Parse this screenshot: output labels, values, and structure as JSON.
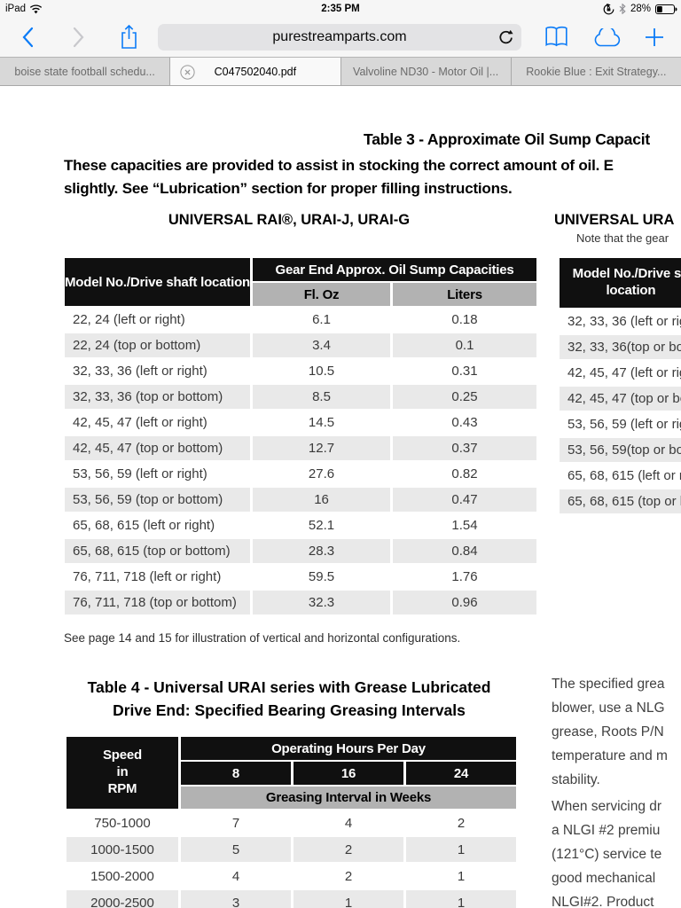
{
  "status_bar": {
    "device": "iPad",
    "time": "2:35 PM",
    "battery_percent": "28%",
    "icons": [
      "wifi-icon",
      "rotation-lock-icon",
      "bluetooth-icon",
      "battery-icon"
    ]
  },
  "toolbar": {
    "url": "purestreamparts.com",
    "icons": [
      "back-icon",
      "forward-icon",
      "share-icon",
      "reload-icon",
      "reading-list-icon",
      "cloud-icon",
      "new-tab-icon"
    ]
  },
  "tabs": [
    {
      "label": "boise state football schedu...",
      "active": false
    },
    {
      "label": "C047502040.pdf",
      "active": true
    },
    {
      "label": "Valvoline ND30 - Motor Oil |...",
      "active": false
    },
    {
      "label": "Rookie Blue : Exit Strategy...",
      "active": false
    }
  ],
  "document": {
    "table3_title": "Table 3 - Approximate Oil Sump Capacit",
    "intro_line1": "These capacities are provided to assist in stocking the correct amount of oil. E",
    "intro_line2": "slightly. See “Lubrication” section for proper filling instructions.",
    "left_heading": "UNIVERSAL RAI®, URAI-J, URAI-G",
    "right_heading": "UNIVERSAL URA",
    "right_note": "Note that the gear",
    "table3": {
      "corner_header": "Model No./Drive shaft location",
      "group_header": "Gear End Approx. Oil Sump Capacities",
      "col_headers": [
        "Fl. Oz",
        "Liters"
      ],
      "rows": [
        [
          "22, 24 (left or right)",
          "6.1",
          "0.18"
        ],
        [
          "22, 24 (top or bottom)",
          "3.4",
          "0.1"
        ],
        [
          "32, 33, 36 (left or right)",
          "10.5",
          "0.31"
        ],
        [
          "32, 33, 36 (top or bottom)",
          "8.5",
          "0.25"
        ],
        [
          "42, 45, 47 (left or right)",
          "14.5",
          "0.43"
        ],
        [
          "42, 45, 47 (top or bottom)",
          "12.7",
          "0.37"
        ],
        [
          "53, 56, 59 (left or right)",
          "27.6",
          "0.82"
        ],
        [
          "53, 56, 59 (top or bottom)",
          "16",
          "0.47"
        ],
        [
          "65, 68, 615 (left or right)",
          "52.1",
          "1.54"
        ],
        [
          "65, 68, 615 (top or bottom)",
          "28.3",
          "0.84"
        ],
        [
          "76, 711, 718 (left or right)",
          "59.5",
          "1.76"
        ],
        [
          "76, 711, 718 (top or bottom)",
          "32.3",
          "0.96"
        ]
      ]
    },
    "table3_footnote": "See page 14 and 15 for illustration of vertical and horizontal configurations.",
    "right_table": {
      "corner_header": "Model No./Drive sh\nlocation",
      "rows": [
        [
          "32, 33, 36 (left or right"
        ],
        [
          "32, 33, 36(top or botto"
        ],
        [
          "42, 45, 47 (left or right"
        ],
        [
          "42, 45, 47 (top or botto"
        ],
        [
          "53, 56, 59 (left or right"
        ],
        [
          "53, 56, 59(top or botto"
        ],
        [
          "65, 68, 615 (left or rig"
        ],
        [
          "65, 68, 615 (top or bot"
        ]
      ]
    },
    "table4_title_line1": "Table 4 - Universal URAI series with Grease Lubricated",
    "table4_title_line2": "Drive End:  Specified Bearing Greasing Intervals",
    "table4": {
      "corner_header": "Speed\nin\nRPM",
      "group_header": "Operating Hours Per Day",
      "col_headers": [
        "8",
        "16",
        "24"
      ],
      "sub_header": "Greasing Interval in Weeks",
      "rows": [
        [
          "750-1000",
          "7",
          "4",
          "2"
        ],
        [
          "1000-1500",
          "5",
          "2",
          "1"
        ],
        [
          "1500-2000",
          "4",
          "2",
          "1"
        ],
        [
          "2000-2500",
          "3",
          "1",
          "1"
        ]
      ]
    },
    "right_column": {
      "para1_lines": [
        "The specified grea",
        "blower, use a NLG",
        "grease, Roots P/N",
        "temperature and m",
        "stability."
      ],
      "para2_lines": [
        "When servicing dr",
        "a NLGI #2 premiu",
        "(121°C) service te",
        "good mechanical",
        "NLGI#2. Product"
      ]
    }
  },
  "colors": {
    "ios_blue": "#0b7bf7",
    "header_black": "#101010",
    "header_gray": "#b2b2b2",
    "row_alt": "#e9e9e9",
    "chrome_bg": "#f6f6f6",
    "tab_inactive": "#d8d8d8",
    "tab_active": "#f9f9f9"
  }
}
